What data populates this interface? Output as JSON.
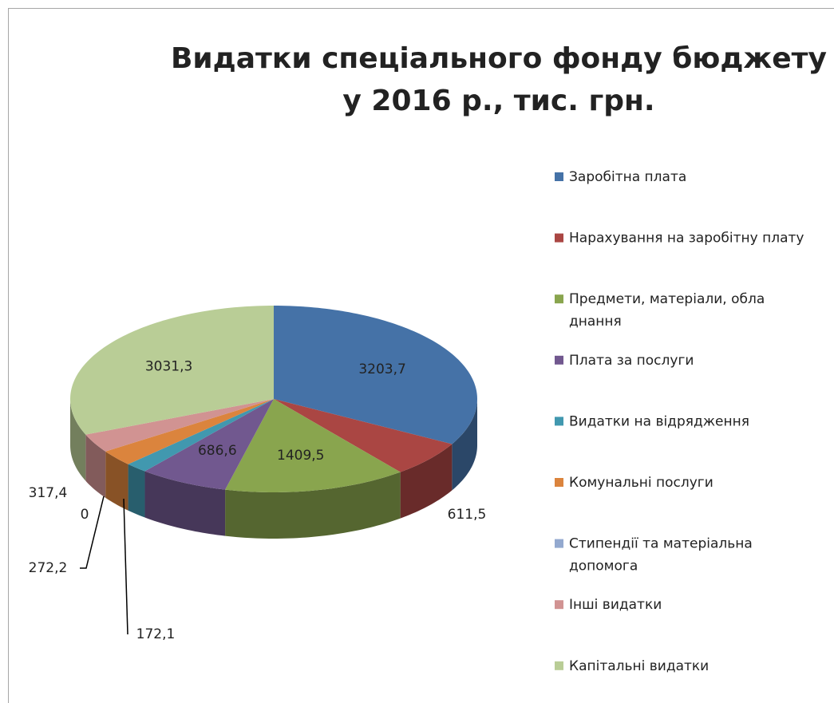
{
  "chart_data": {
    "type": "pie3d",
    "title": "Видатки спеціального фонду бюджету у 2016 р., тис. грн.",
    "categories": [
      "Заробітна плата",
      "Нарахування на заробітну плату",
      "Предмети, матеріали, обла днання",
      "Плата за послуги",
      "Видатки на відрядження",
      "Комунальні послуги",
      "Стипендії та матеріальна допомога",
      "Інші видатки",
      "Капітальні видатки"
    ],
    "values": [
      3203.7,
      611.5,
      1409.5,
      686.6,
      172.1,
      272.2,
      0,
      317.4,
      3031.3
    ],
    "value_labels": [
      "3203,7",
      "611,5",
      "1409,5",
      "686,6",
      "172,1",
      "272,2",
      "0",
      "317,4",
      "3031,3"
    ],
    "colors": [
      "#4572a7",
      "#aa4643",
      "#89a54e",
      "#71588f",
      "#4198af",
      "#db843d",
      "#93a9cf",
      "#d19392",
      "#b9cd96"
    ],
    "legend": "right"
  }
}
